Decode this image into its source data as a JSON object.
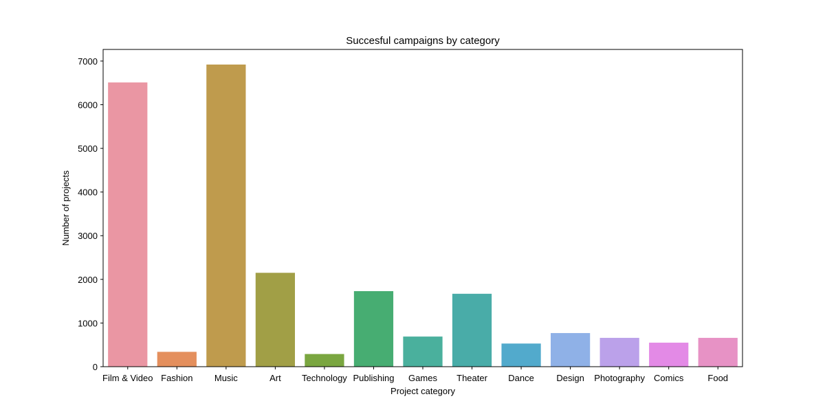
{
  "chart_data": {
    "type": "bar",
    "title": "Succesful campaigns by category",
    "xlabel": "Project category",
    "ylabel": "Number of projects",
    "categories": [
      "Film & Video",
      "Fashion",
      "Music",
      "Art",
      "Technology",
      "Publishing",
      "Games",
      "Theater",
      "Dance",
      "Design",
      "Photography",
      "Comics",
      "Food"
    ],
    "values": [
      6510,
      340,
      6920,
      2150,
      290,
      1730,
      690,
      1670,
      530,
      770,
      660,
      550,
      660
    ],
    "colors": [
      "#ea96a3",
      "#e48f5d",
      "#bf9b4d",
      "#a19f46",
      "#7aa640",
      "#47ad72",
      "#4ab09d",
      "#49aca8",
      "#52aacc",
      "#8fb1e7",
      "#bba1ea",
      "#e38ae6",
      "#e792c5"
    ],
    "yticks": [
      0,
      1000,
      2000,
      3000,
      4000,
      5000,
      6000,
      7000
    ],
    "ylim": [
      0,
      7266
    ],
    "grid": false,
    "legend": false
  }
}
